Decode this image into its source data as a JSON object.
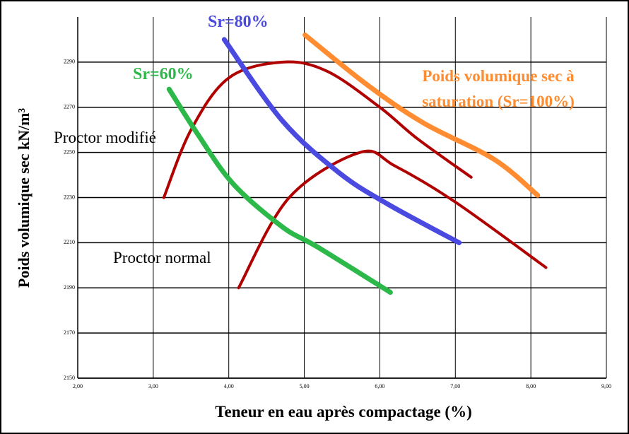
{
  "chart_data": {
    "type": "line",
    "ylabel": "Poids volumique sec kN/m³",
    "xlabel": "Teneur en eau après compactage (%)",
    "xlim": [
      2,
      9
    ],
    "ylim": [
      2150,
      2310
    ],
    "xticks": [
      {
        "value": 2,
        "label": "2,00"
      },
      {
        "value": 3,
        "label": "3,00"
      },
      {
        "value": 4,
        "label": "4,00"
      },
      {
        "value": 5,
        "label": "5,00"
      },
      {
        "value": 6,
        "label": "6,00"
      },
      {
        "value": 7,
        "label": "7,00"
      },
      {
        "value": 8,
        "label": "8,00"
      },
      {
        "value": 9,
        "label": "9,00"
      }
    ],
    "yticks": [
      2150,
      2170,
      2190,
      2210,
      2230,
      2250,
      2270,
      2290
    ],
    "grid": true,
    "series": [
      {
        "name": "Proctor modifié",
        "color": "#b00000",
        "x": [
          3.14,
          3.5,
          4.0,
          4.71,
          5.3,
          6.0,
          6.5,
          7.21
        ],
        "values": [
          2230,
          2260,
          2283,
          2290,
          2286,
          2270,
          2256,
          2239
        ]
      },
      {
        "name": "Proctor normal",
        "color": "#b00000",
        "x": [
          4.13,
          4.8,
          5.74,
          6.2,
          7.0,
          8.2
        ],
        "values": [
          2190,
          2230,
          2250,
          2244,
          2228,
          2199
        ]
      },
      {
        "name": "Sr=60%",
        "color": "#2db84a",
        "x": [
          3.21,
          3.59,
          4.06,
          4.71,
          5.18,
          6.14
        ],
        "values": [
          2278,
          2258,
          2236,
          2217,
          2208,
          2188
        ]
      },
      {
        "name": "Sr=80%",
        "color": "#4a4ae0",
        "x": [
          3.94,
          4.71,
          5.46,
          6.11,
          7.05
        ],
        "values": [
          2300,
          2264,
          2241,
          2227,
          2210
        ]
      },
      {
        "name": "Poids volumique sec à saturation (Sr=100%)",
        "color": "#ff8c30",
        "x": [
          5.01,
          5.83,
          6.58,
          7.51,
          8.09
        ],
        "values": [
          2302,
          2280,
          2263,
          2247,
          2231
        ]
      }
    ]
  }
}
